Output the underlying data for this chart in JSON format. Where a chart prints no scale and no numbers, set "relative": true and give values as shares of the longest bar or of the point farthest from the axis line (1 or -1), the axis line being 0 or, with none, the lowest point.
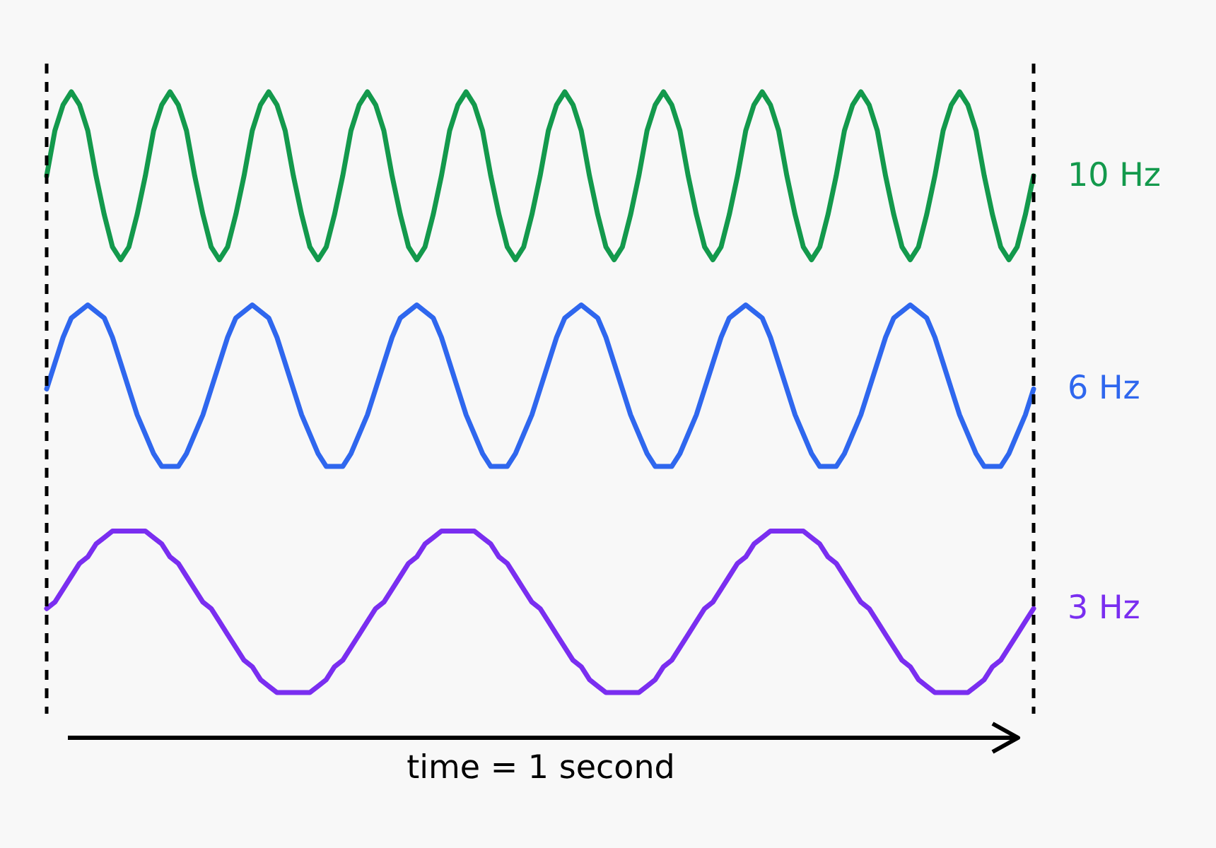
{
  "chart_data": {
    "type": "line",
    "relative": true,
    "xlabel": "time = 1 second",
    "tick_labels": false,
    "legend": false,
    "categories": [
      null,
      null,
      null,
      null,
      null,
      null,
      null,
      null,
      null,
      null,
      null,
      null,
      null,
      null,
      null,
      null,
      null,
      null,
      null,
      null,
      null,
      null,
      null,
      null,
      null,
      null,
      null,
      null,
      null,
      null,
      null,
      null,
      null,
      null,
      null,
      null,
      null,
      null,
      null,
      null,
      null,
      null,
      null,
      null,
      null,
      null,
      null,
      null,
      null,
      null,
      null,
      null,
      null,
      null,
      null,
      null,
      null,
      null,
      null,
      null,
      null,
      null,
      null,
      null,
      null,
      null,
      null,
      null,
      null,
      null,
      null,
      null,
      null,
      null,
      null,
      null,
      null,
      null,
      null,
      null,
      null,
      null,
      null,
      null,
      null,
      null,
      null,
      null,
      null,
      null,
      null,
      null,
      null,
      null,
      null,
      null,
      null,
      null,
      null,
      null,
      null,
      null,
      null,
      null,
      null,
      null,
      null,
      null,
      null,
      null,
      null,
      null,
      null,
      null,
      null,
      null,
      null,
      null,
      null,
      null,
      null
    ],
    "series": [
      {
        "name": "10 Hz",
        "color": "#13994c",
        "values": [
          0.87,
          0.94,
          0.98,
          1,
          0.98,
          0.94,
          0.87,
          0.81,
          0.76,
          0.74,
          0.76,
          0.81,
          0.87,
          0.94,
          0.98,
          1,
          0.98,
          0.94,
          0.87,
          0.81,
          0.76,
          0.74,
          0.76,
          0.81,
          0.87,
          0.94,
          0.98,
          1,
          0.98,
          0.94,
          0.87,
          0.81,
          0.76,
          0.74,
          0.76,
          0.81,
          0.87,
          0.94,
          0.98,
          1,
          0.98,
          0.94,
          0.87,
          0.81,
          0.76,
          0.74,
          0.76,
          0.81,
          0.87,
          0.94,
          0.98,
          1,
          0.98,
          0.94,
          0.87,
          0.81,
          0.76,
          0.74,
          0.76,
          0.81,
          0.87,
          0.94,
          0.98,
          1,
          0.98,
          0.94,
          0.87,
          0.81,
          0.76,
          0.74,
          0.76,
          0.81,
          0.87,
          0.94,
          0.98,
          1,
          0.98,
          0.94,
          0.87,
          0.81,
          0.76,
          0.74,
          0.76,
          0.81,
          0.87,
          0.94,
          0.98,
          1,
          0.98,
          0.94,
          0.87,
          0.81,
          0.76,
          0.74,
          0.76,
          0.81,
          0.87,
          0.94,
          0.98,
          1,
          0.98,
          0.94,
          0.87,
          0.81,
          0.76,
          0.74,
          0.76,
          0.81,
          0.87,
          0.94,
          0.98,
          1,
          0.98,
          0.94,
          0.87,
          0.81,
          0.76,
          0.74,
          0.76,
          0.81,
          0.87
        ]
      },
      {
        "name": "6 Hz",
        "color": "#2f67ee",
        "values": [
          0.54,
          0.58,
          0.62,
          0.65,
          0.66,
          0.67,
          0.66,
          0.65,
          0.62,
          0.58,
          0.54,
          0.5,
          0.47,
          0.44,
          0.42,
          0.42,
          0.42,
          0.44,
          0.47,
          0.5,
          0.54,
          0.58,
          0.62,
          0.65,
          0.66,
          0.67,
          0.66,
          0.65,
          0.62,
          0.58,
          0.54,
          0.5,
          0.47,
          0.44,
          0.42,
          0.42,
          0.42,
          0.44,
          0.47,
          0.5,
          0.54,
          0.58,
          0.62,
          0.65,
          0.66,
          0.67,
          0.66,
          0.65,
          0.62,
          0.58,
          0.54,
          0.5,
          0.47,
          0.44,
          0.42,
          0.42,
          0.42,
          0.44,
          0.47,
          0.5,
          0.54,
          0.58,
          0.62,
          0.65,
          0.66,
          0.67,
          0.66,
          0.65,
          0.62,
          0.58,
          0.54,
          0.5,
          0.47,
          0.44,
          0.42,
          0.42,
          0.42,
          0.44,
          0.47,
          0.5,
          0.54,
          0.58,
          0.62,
          0.65,
          0.66,
          0.67,
          0.66,
          0.65,
          0.62,
          0.58,
          0.54,
          0.5,
          0.47,
          0.44,
          0.42,
          0.42,
          0.42,
          0.44,
          0.47,
          0.5,
          0.54,
          0.58,
          0.62,
          0.65,
          0.66,
          0.67,
          0.66,
          0.65,
          0.62,
          0.58,
          0.54,
          0.5,
          0.47,
          0.44,
          0.42,
          0.42,
          0.42,
          0.44,
          0.47,
          0.5,
          0.54
        ]
      },
      {
        "name": "3 Hz",
        "color": "#7a2ef0",
        "values": [
          0.2,
          0.21,
          0.23,
          0.25,
          0.27,
          0.28,
          0.3,
          0.31,
          0.32,
          0.32,
          0.32,
          0.32,
          0.32,
          0.31,
          0.3,
          0.28,
          0.27,
          0.25,
          0.23,
          0.21,
          0.2,
          0.18,
          0.16,
          0.14,
          0.12,
          0.11,
          0.09,
          0.08,
          0.07,
          0.07,
          0.07,
          0.07,
          0.07,
          0.08,
          0.09,
          0.11,
          0.12,
          0.14,
          0.16,
          0.18,
          0.2,
          0.21,
          0.23,
          0.25,
          0.27,
          0.28,
          0.3,
          0.31,
          0.32,
          0.32,
          0.32,
          0.32,
          0.32,
          0.31,
          0.3,
          0.28,
          0.27,
          0.25,
          0.23,
          0.21,
          0.2,
          0.18,
          0.16,
          0.14,
          0.12,
          0.11,
          0.09,
          0.08,
          0.07,
          0.07,
          0.07,
          0.07,
          0.07,
          0.08,
          0.09,
          0.11,
          0.12,
          0.14,
          0.16,
          0.18,
          0.2,
          0.21,
          0.23,
          0.25,
          0.27,
          0.28,
          0.3,
          0.31,
          0.32,
          0.32,
          0.32,
          0.32,
          0.32,
          0.31,
          0.3,
          0.28,
          0.27,
          0.25,
          0.23,
          0.21,
          0.2,
          0.18,
          0.16,
          0.14,
          0.12,
          0.11,
          0.09,
          0.08,
          0.07,
          0.07,
          0.07,
          0.07,
          0.07,
          0.08,
          0.09,
          0.11,
          0.12,
          0.14,
          0.16,
          0.18,
          0.2
        ]
      }
    ]
  }
}
